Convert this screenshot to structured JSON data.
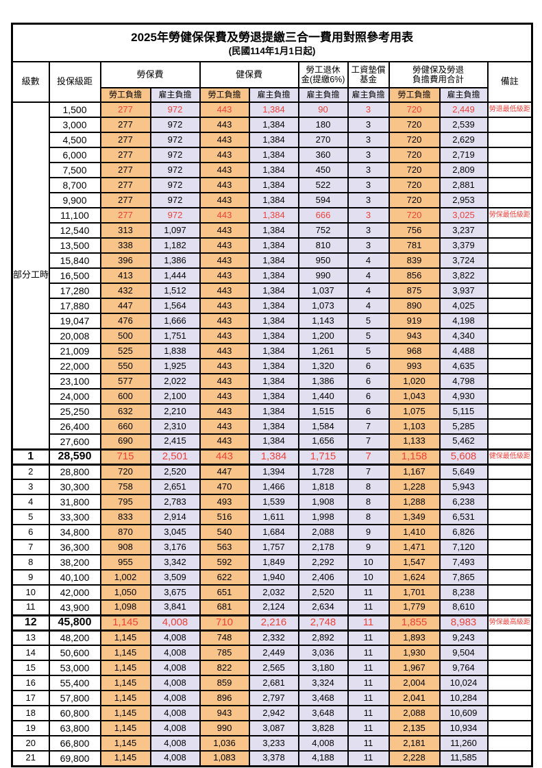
{
  "title": "2025年勞健保保費及勞退提繳三合一費用對照參考用表",
  "subtitle": "(民國114年1月1日起)",
  "columns": {
    "level_header": "級數",
    "bracket_header": "投保級距",
    "labor_fee_header": "勞保費",
    "health_fee_header": "健保費",
    "pension_header_line1": "勞工退休",
    "pension_header_line2": "金(提繳6%)",
    "wage_fund_header_line1": "工資墊償",
    "wage_fund_header_line2": "基金",
    "total_header_line1": "勞健保及勞退",
    "total_header_line2": "負擔費用合計",
    "remark_header": "備註",
    "employee_share": "勞工負擔",
    "employer_share": "雇主負擔"
  },
  "part_time_label": "部分工時",
  "part_time_rowspan": 23,
  "colors": {
    "employee_bg": "#F9C489",
    "employer_bg": "#E2DFF0",
    "red_text": "#EB423B",
    "border": "#000000"
  },
  "remarks": {
    "pension_min": "勞退最低級距",
    "labor_min": "勞保最低級距",
    "health_min": "健保最低級距",
    "labor_max": "勞保最高級距"
  },
  "rows": [
    {
      "level": null,
      "bracket": "1,500",
      "v": [
        "277",
        "972",
        "443",
        "1,384",
        "90",
        "3",
        "720",
        "2,449"
      ],
      "remark": "勞退最低級距",
      "red": true,
      "big": false
    },
    {
      "level": null,
      "bracket": "3,000",
      "v": [
        "277",
        "972",
        "443",
        "1,384",
        "180",
        "3",
        "720",
        "2,539"
      ],
      "remark": "",
      "red": false,
      "big": false
    },
    {
      "level": null,
      "bracket": "4,500",
      "v": [
        "277",
        "972",
        "443",
        "1,384",
        "270",
        "3",
        "720",
        "2,629"
      ],
      "remark": "",
      "red": false,
      "big": false
    },
    {
      "level": null,
      "bracket": "6,000",
      "v": [
        "277",
        "972",
        "443",
        "1,384",
        "360",
        "3",
        "720",
        "2,719"
      ],
      "remark": "",
      "red": false,
      "big": false
    },
    {
      "level": null,
      "bracket": "7,500",
      "v": [
        "277",
        "972",
        "443",
        "1,384",
        "450",
        "3",
        "720",
        "2,809"
      ],
      "remark": "",
      "red": false,
      "big": false
    },
    {
      "level": null,
      "bracket": "8,700",
      "v": [
        "277",
        "972",
        "443",
        "1,384",
        "522",
        "3",
        "720",
        "2,881"
      ],
      "remark": "",
      "red": false,
      "big": false
    },
    {
      "level": null,
      "bracket": "9,900",
      "v": [
        "277",
        "972",
        "443",
        "1,384",
        "594",
        "3",
        "720",
        "2,953"
      ],
      "remark": "",
      "red": false,
      "big": false
    },
    {
      "level": null,
      "bracket": "11,100",
      "v": [
        "277",
        "972",
        "443",
        "1,384",
        "666",
        "3",
        "720",
        "3,025"
      ],
      "remark": "勞保最低級距",
      "red": true,
      "big": false
    },
    {
      "level": null,
      "bracket": "12,540",
      "v": [
        "313",
        "1,097",
        "443",
        "1,384",
        "752",
        "3",
        "756",
        "3,237"
      ],
      "remark": "",
      "red": false,
      "big": false
    },
    {
      "level": null,
      "bracket": "13,500",
      "v": [
        "338",
        "1,182",
        "443",
        "1,384",
        "810",
        "3",
        "781",
        "3,379"
      ],
      "remark": "",
      "red": false,
      "big": false
    },
    {
      "level": null,
      "bracket": "15,840",
      "v": [
        "396",
        "1,386",
        "443",
        "1,384",
        "950",
        "4",
        "839",
        "3,724"
      ],
      "remark": "",
      "red": false,
      "big": false
    },
    {
      "level": null,
      "bracket": "16,500",
      "v": [
        "413",
        "1,444",
        "443",
        "1,384",
        "990",
        "4",
        "856",
        "3,822"
      ],
      "remark": "",
      "red": false,
      "big": false
    },
    {
      "level": null,
      "bracket": "17,280",
      "v": [
        "432",
        "1,512",
        "443",
        "1,384",
        "1,037",
        "4",
        "875",
        "3,937"
      ],
      "remark": "",
      "red": false,
      "big": false
    },
    {
      "level": null,
      "bracket": "17,880",
      "v": [
        "447",
        "1,564",
        "443",
        "1,384",
        "1,073",
        "4",
        "890",
        "4,025"
      ],
      "remark": "",
      "red": false,
      "big": false
    },
    {
      "level": null,
      "bracket": "19,047",
      "v": [
        "476",
        "1,666",
        "443",
        "1,384",
        "1,143",
        "5",
        "919",
        "4,198"
      ],
      "remark": "",
      "red": false,
      "big": false
    },
    {
      "level": null,
      "bracket": "20,008",
      "v": [
        "500",
        "1,751",
        "443",
        "1,384",
        "1,200",
        "5",
        "943",
        "4,340"
      ],
      "remark": "",
      "red": false,
      "big": false
    },
    {
      "level": null,
      "bracket": "21,009",
      "v": [
        "525",
        "1,838",
        "443",
        "1,384",
        "1,261",
        "5",
        "968",
        "4,488"
      ],
      "remark": "",
      "red": false,
      "big": false
    },
    {
      "level": null,
      "bracket": "22,000",
      "v": [
        "550",
        "1,925",
        "443",
        "1,384",
        "1,320",
        "6",
        "993",
        "4,635"
      ],
      "remark": "",
      "red": false,
      "big": false
    },
    {
      "level": null,
      "bracket": "23,100",
      "v": [
        "577",
        "2,022",
        "443",
        "1,384",
        "1,386",
        "6",
        "1,020",
        "4,798"
      ],
      "remark": "",
      "red": false,
      "big": false
    },
    {
      "level": null,
      "bracket": "24,000",
      "v": [
        "600",
        "2,100",
        "443",
        "1,384",
        "1,440",
        "6",
        "1,043",
        "4,930"
      ],
      "remark": "",
      "red": false,
      "big": false
    },
    {
      "level": null,
      "bracket": "25,250",
      "v": [
        "632",
        "2,210",
        "443",
        "1,384",
        "1,515",
        "6",
        "1,075",
        "5,115"
      ],
      "remark": "",
      "red": false,
      "big": false
    },
    {
      "level": null,
      "bracket": "26,400",
      "v": [
        "660",
        "2,310",
        "443",
        "1,384",
        "1,584",
        "7",
        "1,103",
        "5,285"
      ],
      "remark": "",
      "red": false,
      "big": false
    },
    {
      "level": null,
      "bracket": "27,600",
      "v": [
        "690",
        "2,415",
        "443",
        "1,384",
        "1,656",
        "7",
        "1,133",
        "5,462"
      ],
      "remark": "",
      "red": false,
      "big": false
    },
    {
      "level": "1",
      "bracket": "28,590",
      "v": [
        "715",
        "2,501",
        "443",
        "1,384",
        "1,715",
        "7",
        "1,158",
        "5,608"
      ],
      "remark": "健保最低級距",
      "red": true,
      "big": true
    },
    {
      "level": "2",
      "bracket": "28,800",
      "v": [
        "720",
        "2,520",
        "447",
        "1,394",
        "1,728",
        "7",
        "1,167",
        "5,649"
      ],
      "remark": "",
      "red": false,
      "big": false
    },
    {
      "level": "3",
      "bracket": "30,300",
      "v": [
        "758",
        "2,651",
        "470",
        "1,466",
        "1,818",
        "8",
        "1,228",
        "5,943"
      ],
      "remark": "",
      "red": false,
      "big": false
    },
    {
      "level": "4",
      "bracket": "31,800",
      "v": [
        "795",
        "2,783",
        "493",
        "1,539",
        "1,908",
        "8",
        "1,288",
        "6,238"
      ],
      "remark": "",
      "red": false,
      "big": false
    },
    {
      "level": "5",
      "bracket": "33,300",
      "v": [
        "833",
        "2,914",
        "516",
        "1,611",
        "1,998",
        "8",
        "1,349",
        "6,531"
      ],
      "remark": "",
      "red": false,
      "big": false
    },
    {
      "level": "6",
      "bracket": "34,800",
      "v": [
        "870",
        "3,045",
        "540",
        "1,684",
        "2,088",
        "9",
        "1,410",
        "6,826"
      ],
      "remark": "",
      "red": false,
      "big": false
    },
    {
      "level": "7",
      "bracket": "36,300",
      "v": [
        "908",
        "3,176",
        "563",
        "1,757",
        "2,178",
        "9",
        "1,471",
        "7,120"
      ],
      "remark": "",
      "red": false,
      "big": false
    },
    {
      "level": "8",
      "bracket": "38,200",
      "v": [
        "955",
        "3,342",
        "592",
        "1,849",
        "2,292",
        "10",
        "1,547",
        "7,493"
      ],
      "remark": "",
      "red": false,
      "big": false
    },
    {
      "level": "9",
      "bracket": "40,100",
      "v": [
        "1,002",
        "3,509",
        "622",
        "1,940",
        "2,406",
        "10",
        "1,624",
        "7,865"
      ],
      "remark": "",
      "red": false,
      "big": false
    },
    {
      "level": "10",
      "bracket": "42,000",
      "v": [
        "1,050",
        "3,675",
        "651",
        "2,032",
        "2,520",
        "11",
        "1,701",
        "8,238"
      ],
      "remark": "",
      "red": false,
      "big": false
    },
    {
      "level": "11",
      "bracket": "43,900",
      "v": [
        "1,098",
        "3,841",
        "681",
        "2,124",
        "2,634",
        "11",
        "1,779",
        "8,610"
      ],
      "remark": "",
      "red": false,
      "big": false
    },
    {
      "level": "12",
      "bracket": "45,800",
      "v": [
        "1,145",
        "4,008",
        "710",
        "2,216",
        "2,748",
        "11",
        "1,855",
        "8,983"
      ],
      "remark": "勞保最高級距",
      "red": true,
      "big": true
    },
    {
      "level": "13",
      "bracket": "48,200",
      "v": [
        "1,145",
        "4,008",
        "748",
        "2,332",
        "2,892",
        "11",
        "1,893",
        "9,243"
      ],
      "remark": "",
      "red": false,
      "big": false
    },
    {
      "level": "14",
      "bracket": "50,600",
      "v": [
        "1,145",
        "4,008",
        "785",
        "2,449",
        "3,036",
        "11",
        "1,930",
        "9,504"
      ],
      "remark": "",
      "red": false,
      "big": false
    },
    {
      "level": "15",
      "bracket": "53,000",
      "v": [
        "1,145",
        "4,008",
        "822",
        "2,565",
        "3,180",
        "11",
        "1,967",
        "9,764"
      ],
      "remark": "",
      "red": false,
      "big": false
    },
    {
      "level": "16",
      "bracket": "55,400",
      "v": [
        "1,145",
        "4,008",
        "859",
        "2,681",
        "3,324",
        "11",
        "2,004",
        "10,024"
      ],
      "remark": "",
      "red": false,
      "big": false
    },
    {
      "level": "17",
      "bracket": "57,800",
      "v": [
        "1,145",
        "4,008",
        "896",
        "2,797",
        "3,468",
        "11",
        "2,041",
        "10,284"
      ],
      "remark": "",
      "red": false,
      "big": false
    },
    {
      "level": "18",
      "bracket": "60,800",
      "v": [
        "1,145",
        "4,008",
        "943",
        "2,942",
        "3,648",
        "11",
        "2,088",
        "10,609"
      ],
      "remark": "",
      "red": false,
      "big": false
    },
    {
      "level": "19",
      "bracket": "63,800",
      "v": [
        "1,145",
        "4,008",
        "990",
        "3,087",
        "3,828",
        "11",
        "2,135",
        "10,934"
      ],
      "remark": "",
      "red": false,
      "big": false
    },
    {
      "level": "20",
      "bracket": "66,800",
      "v": [
        "1,145",
        "4,008",
        "1,036",
        "3,233",
        "4,008",
        "11",
        "2,181",
        "11,260"
      ],
      "remark": "",
      "red": false,
      "big": false
    },
    {
      "level": "21",
      "bracket": "69,800",
      "v": [
        "1,145",
        "4,008",
        "1,083",
        "3,378",
        "4,188",
        "11",
        "2,228",
        "11,585"
      ],
      "remark": "",
      "red": false,
      "big": false
    }
  ]
}
